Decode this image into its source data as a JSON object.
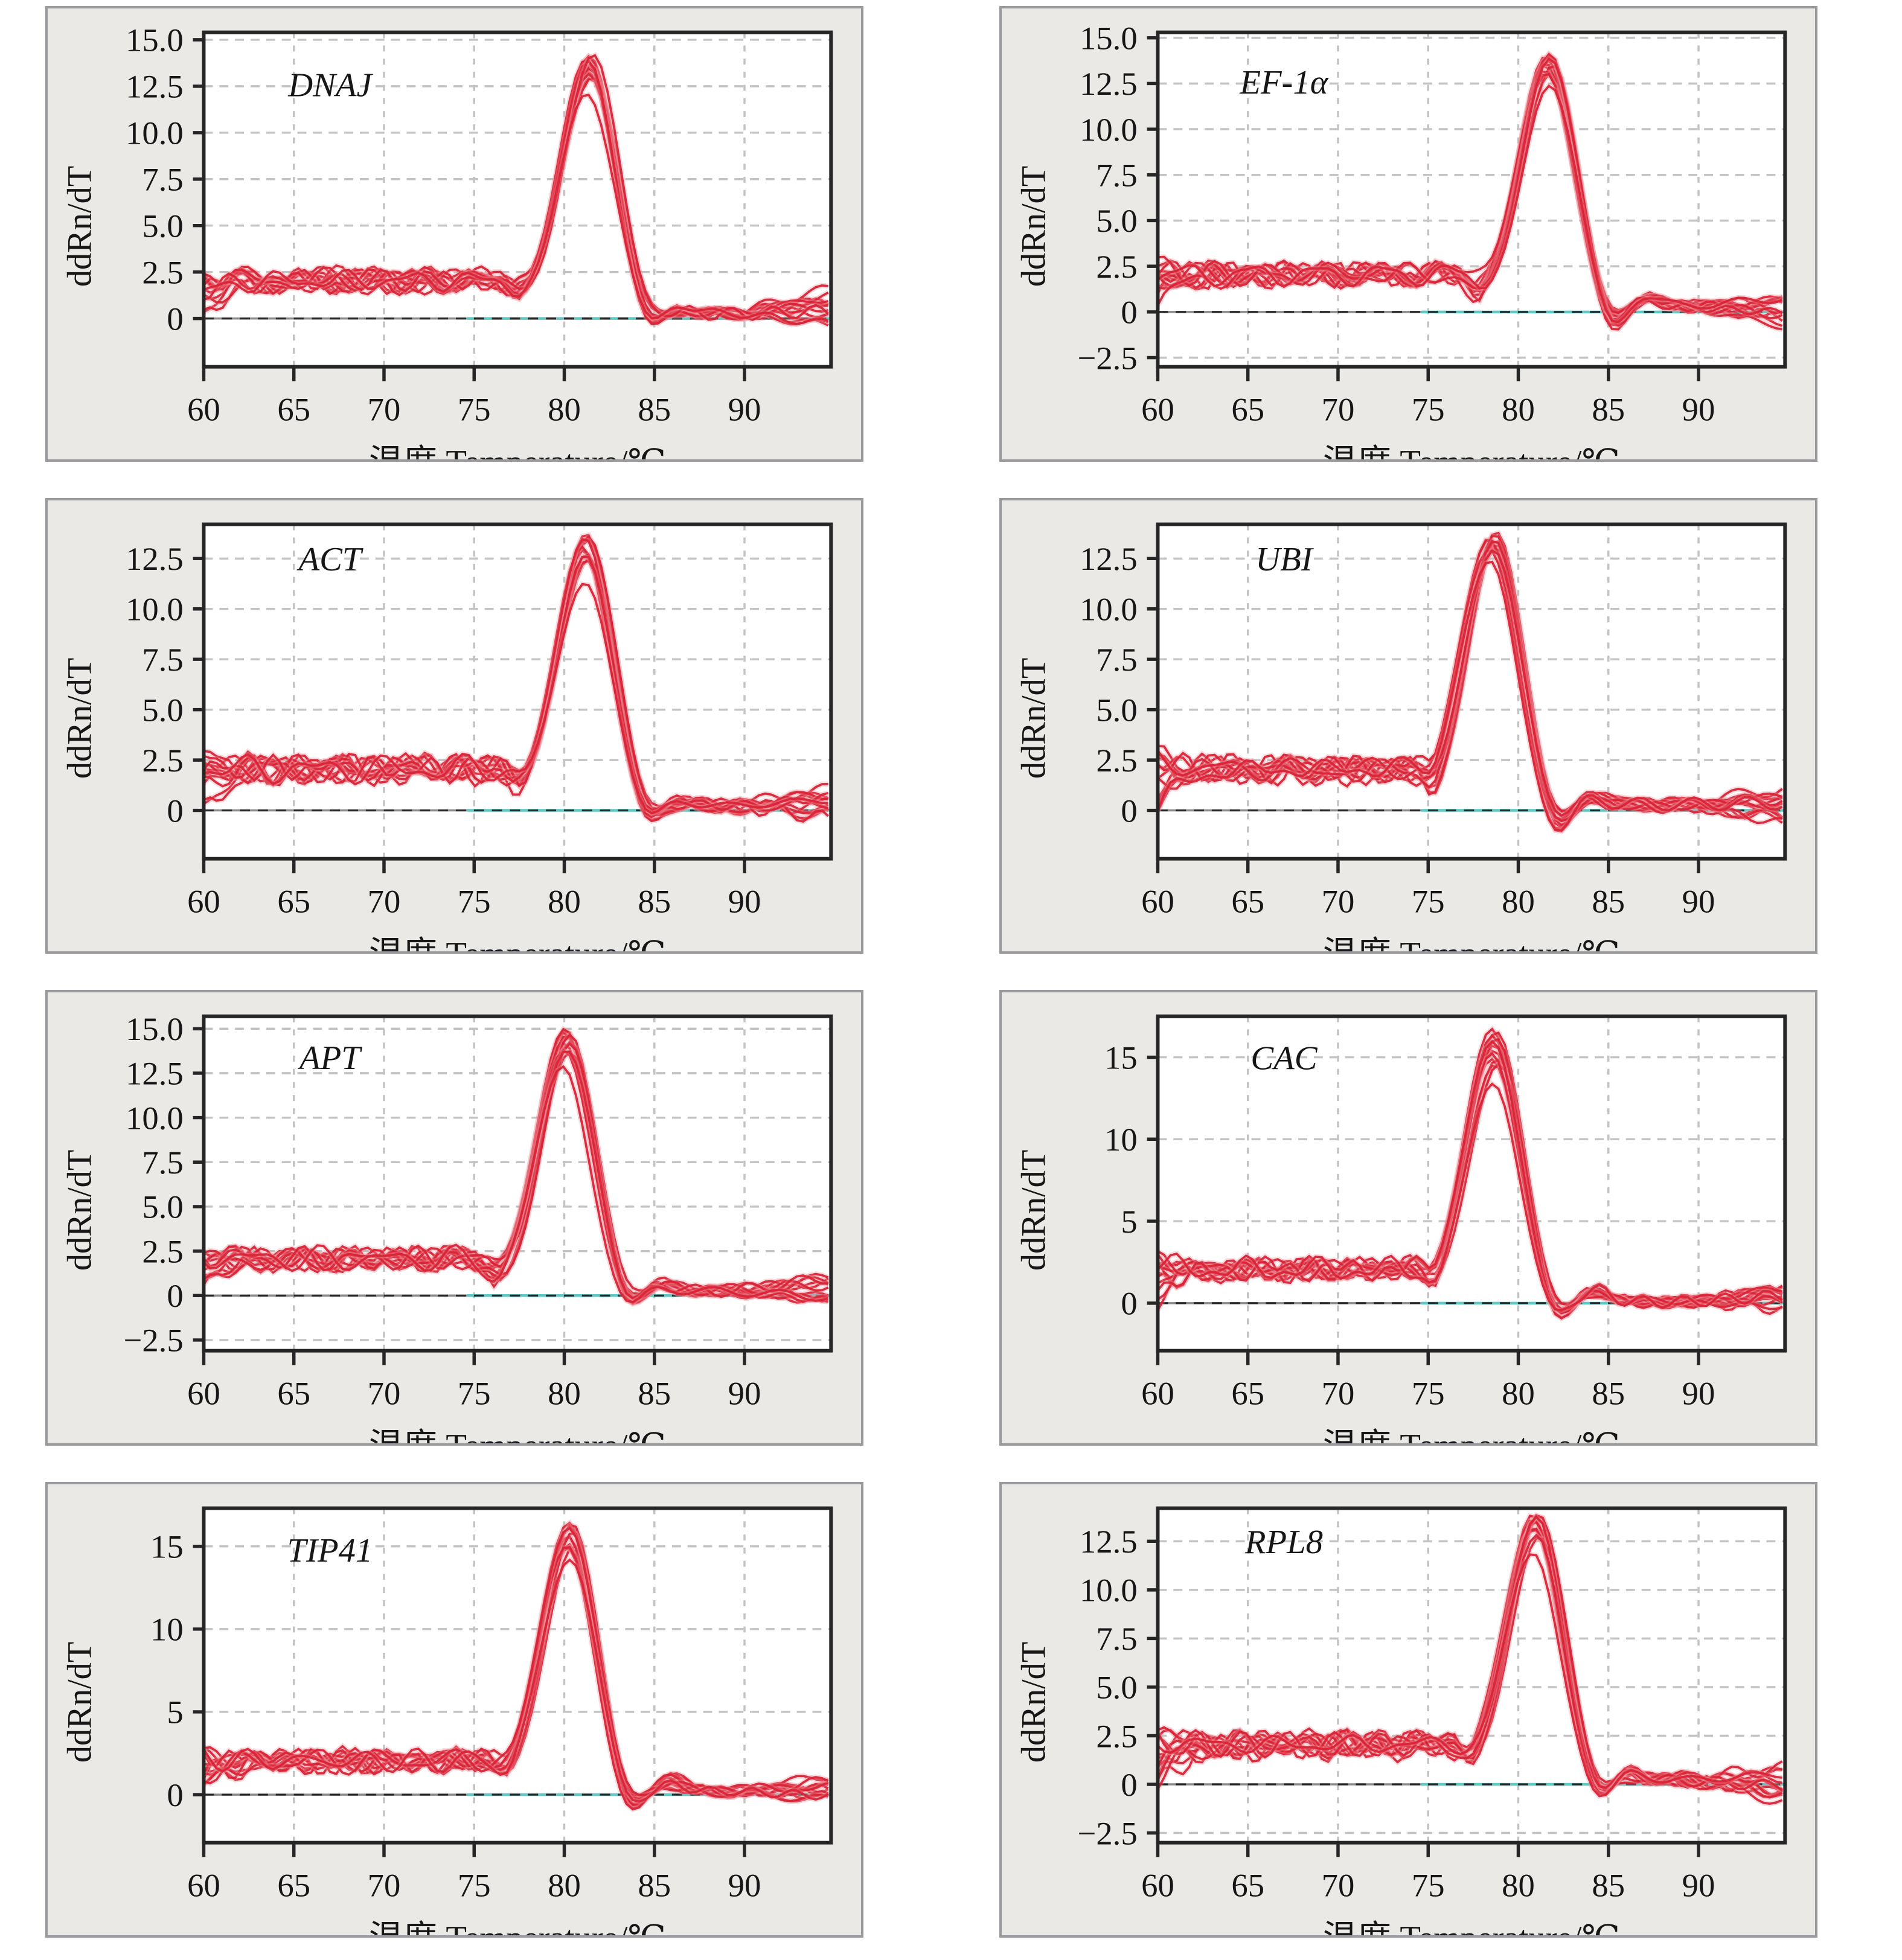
{
  "page": {
    "background": "#ffffff"
  },
  "panel_common": {
    "ylabel": "ddRn/dT",
    "xlabel": "温度 Temperature/℃",
    "xlim": [
      60,
      94.8
    ],
    "xticks": [
      60,
      65,
      70,
      75,
      80,
      85,
      90
    ],
    "xtick_labels": [
      "60",
      "65",
      "70",
      "75",
      "80",
      "85",
      "90"
    ],
    "n_replicates": 13,
    "legend": "none",
    "grid": "dashed",
    "colors": {
      "curve": "#d92336",
      "curve_halo": "#f0949e",
      "grid": "#c3c3c3",
      "frame": "#262626",
      "zero_line_gray": "#8a8a8a",
      "zero_line_teal": "#5ec8c4",
      "card_background": "#eae9e6",
      "card_border": "#9a9a9e",
      "plot_background": "#ffffff",
      "text": "#161616"
    }
  },
  "chart_data": [
    {
      "type": "line",
      "title": "DNAJ",
      "xlabel": "温度 Temperature/℃",
      "ylabel": "ddRn/dT",
      "seed": 11,
      "ylim": [
        -2.6,
        15.4
      ],
      "yticks": [
        0,
        2.5,
        5,
        7.5,
        10,
        12.5,
        15
      ],
      "ytick_labels": [
        "0",
        "2.5",
        "5.0",
        "7.5",
        "10.0",
        "12.5",
        "15.0"
      ],
      "label_x": 67,
      "label_y": 12.6,
      "model": {
        "tm": 81.4,
        "h": [
          12.0,
          14.2
        ],
        "dip_dx": -3.9,
        "dip": [
          0.2,
          1.0
        ],
        "u_dx": 3.2,
        "u": [
          0.5,
          1.3
        ],
        "b_dx": 5.0,
        "b": [
          0.1,
          0.5
        ],
        "tail": 0.25,
        "end": [
          -0.6,
          1.4
        ]
      },
      "representative_curve": {
        "x_start": 60,
        "x_step": 1,
        "y": [
          2.2,
          2.0,
          2.4,
          2.3,
          2.1,
          2.5,
          2.8,
          2.4,
          2.2,
          2.5,
          2.3,
          2.2,
          2.4,
          2.3,
          2.2,
          2.1,
          1.7,
          0.9,
          0.7,
          2.6,
          7.5,
          12.4,
          13.0,
          8.0,
          1.8,
          -0.9,
          -0.1,
          0.3,
          0.2,
          0.3,
          0.2,
          0.3,
          0.4,
          0.3,
          0.4
        ]
      }
    },
    {
      "type": "line",
      "title": "EF-1α",
      "xlabel": "温度 Temperature/℃",
      "ylabel": "ddRn/dT",
      "seed": 22,
      "ylim": [
        -3.0,
        15.3
      ],
      "yticks": [
        -2.5,
        0,
        2.5,
        5,
        7.5,
        10,
        12.5,
        15
      ],
      "ytick_labels": [
        "−2.5",
        "0",
        "2.5",
        "5.0",
        "7.5",
        "10.0",
        "12.5",
        "15.0"
      ],
      "label_x": 67,
      "label_y": 12.6,
      "model": {
        "tm": 81.7,
        "h": [
          12.3,
          14.2
        ],
        "dip_dx": -3.9,
        "dip": [
          0.3,
          1.6
        ],
        "u_dx": 3.5,
        "u": [
          0.7,
          1.6
        ],
        "b_dx": 5.2,
        "b": [
          0.3,
          0.9
        ],
        "tail": 0.35,
        "end": [
          -1.2,
          0.9
        ]
      },
      "representative_curve": {
        "x_start": 60,
        "x_step": 1,
        "y": [
          2.2,
          2.4,
          2.1,
          2.3,
          2.6,
          2.3,
          2.1,
          2.4,
          2.6,
          2.2,
          2.3,
          2.5,
          2.2,
          2.0,
          2.3,
          2.1,
          1.6,
          0.8,
          0.5,
          1.9,
          6.0,
          11.2,
          13.4,
          9.5,
          2.5,
          -1.0,
          -0.6,
          0.8,
          0.4,
          0.3,
          0.4,
          0.3,
          0.5,
          0.4,
          0.3
        ]
      }
    },
    {
      "type": "line",
      "title": "ACT",
      "xlabel": "温度 Temperature/℃",
      "ylabel": "ddRn/dT",
      "seed": 33,
      "ylim": [
        -2.4,
        14.2
      ],
      "yticks": [
        0,
        2.5,
        5,
        7.5,
        10,
        12.5
      ],
      "ytick_labels": [
        "0",
        "2.5",
        "5.0",
        "7.5",
        "10.0",
        "12.5"
      ],
      "label_x": 67,
      "label_y": 12.5,
      "model": {
        "tm": 81.2,
        "h": [
          11.2,
          13.8
        ],
        "dip_dx": -3.8,
        "dip": [
          0.2,
          0.9
        ],
        "u_dx": 3.3,
        "u": [
          0.5,
          1.2
        ],
        "b_dx": 5.0,
        "b": [
          0.1,
          0.4
        ],
        "tail": 0.2,
        "end": [
          -0.7,
          0.8
        ]
      },
      "representative_curve": {
        "x_start": 60,
        "x_step": 1,
        "y": [
          2.3,
          2.1,
          2.4,
          2.2,
          2.0,
          2.3,
          2.5,
          2.2,
          2.1,
          2.3,
          2.2,
          2.4,
          2.1,
          2.3,
          2.2,
          2.3,
          1.6,
          0.7,
          0.9,
          3.0,
          8.0,
          12.6,
          12.8,
          7.0,
          1.2,
          -0.8,
          0.0,
          0.2,
          0.3,
          0.2,
          0.3,
          0.2,
          0.3,
          0.4,
          0.3
        ]
      }
    },
    {
      "type": "line",
      "title": "UBI",
      "xlabel": "温度 Temperature/℃",
      "ylabel": "ddRn/dT",
      "seed": 44,
      "ylim": [
        -2.4,
        14.2
      ],
      "yticks": [
        0,
        2.5,
        5,
        7.5,
        10,
        12.5
      ],
      "ytick_labels": [
        "0",
        "2.5",
        "5.0",
        "7.5",
        "10.0",
        "12.5"
      ],
      "label_x": 67,
      "label_y": 12.5,
      "model": {
        "tm": 78.6,
        "h": [
          12.3,
          13.9
        ],
        "dip_dx": -3.5,
        "dip": [
          0.2,
          1.0
        ],
        "u_dx": 3.4,
        "u": [
          0.8,
          1.6
        ],
        "b_dx": 5.4,
        "b": [
          0.2,
          0.7
        ],
        "tail": 0.3,
        "end": [
          -1.0,
          1.3
        ]
      },
      "representative_curve": {
        "x_start": 60,
        "x_step": 1,
        "y": [
          2.4,
          2.2,
          2.5,
          2.2,
          2.1,
          2.4,
          2.2,
          2.3,
          2.5,
          2.2,
          2.6,
          2.3,
          2.1,
          2.0,
          1.6,
          0.8,
          1.2,
          5.0,
          11.0,
          13.2,
          11.5,
          5.0,
          0.3,
          -1.2,
          0.4,
          0.5,
          0.3,
          0.4,
          0.3,
          0.2,
          0.4,
          0.3,
          0.5,
          0.6,
          0.4
        ]
      }
    },
    {
      "type": "line",
      "title": "APT",
      "xlabel": "温度 Temperature/℃",
      "ylabel": "ddRn/dT",
      "seed": 55,
      "ylim": [
        -3.1,
        15.7
      ],
      "yticks": [
        -2.5,
        0,
        2.5,
        5,
        7.5,
        10,
        12.5,
        15
      ],
      "ytick_labels": [
        "−2.5",
        "0",
        "2.5",
        "5.0",
        "7.5",
        "10.0",
        "12.5",
        "15.0"
      ],
      "label_x": 67,
      "label_y": 13.4,
      "model": {
        "tm": 80.1,
        "h": [
          12.8,
          15.0
        ],
        "dip_dx": -3.9,
        "dip": [
          0.4,
          1.4
        ],
        "u_dx": 3.3,
        "u": [
          0.8,
          1.7
        ],
        "b_dx": 5.1,
        "b": [
          0.2,
          0.6
        ],
        "tail": 0.25,
        "end": [
          -0.6,
          1.0
        ]
      },
      "representative_curve": {
        "x_start": 60,
        "x_step": 1,
        "y": [
          2.3,
          2.5,
          2.2,
          2.4,
          2.1,
          2.3,
          2.2,
          2.4,
          2.3,
          2.1,
          2.4,
          2.2,
          2.3,
          2.2,
          2.1,
          1.7,
          0.5,
          1.0,
          4.5,
          10.0,
          13.6,
          12.8,
          7.0,
          0.8,
          -1.2,
          -0.4,
          0.3,
          0.2,
          0.3,
          0.2,
          0.3,
          0.4,
          0.7,
          0.5,
          0.3
        ]
      }
    },
    {
      "type": "line",
      "title": "CAC",
      "xlabel": "温度 Temperature/℃",
      "ylabel": "ddRn/dT",
      "seed": 66,
      "ylim": [
        -2.9,
        17.5
      ],
      "yticks": [
        0,
        5,
        10,
        15
      ],
      "ytick_labels": [
        "0",
        "5",
        "10",
        "15"
      ],
      "label_x": 67,
      "label_y": 15.0,
      "model": {
        "tm": 78.7,
        "h": [
          13.3,
          16.8
        ],
        "dip_dx": -3.4,
        "dip": [
          0.3,
          1.2
        ],
        "u_dx": 3.3,
        "u": [
          0.9,
          1.8
        ],
        "b_dx": 5.5,
        "b": [
          0.4,
          1.1
        ],
        "tail": 0.1,
        "end": [
          -0.5,
          0.9
        ]
      },
      "representative_curve": {
        "x_start": 60,
        "x_step": 1,
        "y": [
          2.4,
          2.1,
          2.6,
          2.3,
          2.0,
          2.4,
          2.6,
          2.2,
          2.4,
          2.1,
          2.5,
          2.3,
          2.4,
          2.2,
          1.8,
          0.7,
          1.5,
          6.0,
          13.0,
          15.2,
          12.5,
          5.5,
          -0.5,
          -1.5,
          0.8,
          0.4,
          0.1,
          -0.1,
          0.0,
          -0.2,
          -0.1,
          0.0,
          -0.2,
          0.1,
          -0.1
        ]
      }
    },
    {
      "type": "line",
      "title": "TIP41",
      "xlabel": "温度 Temperature/℃",
      "ylabel": "ddRn/dT",
      "seed": 77,
      "ylim": [
        -2.9,
        17.3
      ],
      "yticks": [
        0,
        5,
        10,
        15
      ],
      "ytick_labels": [
        "0",
        "5",
        "10",
        "15"
      ],
      "label_x": 67,
      "label_y": 14.8,
      "model": {
        "tm": 80.3,
        "h": [
          14.1,
          16.5
        ],
        "dip_dx": -3.6,
        "dip": [
          0.4,
          1.3
        ],
        "u_dx": 3.2,
        "u": [
          0.9,
          1.8
        ],
        "b_dx": 5.6,
        "b": [
          0.3,
          0.9
        ],
        "tail": 0.2,
        "end": [
          -0.5,
          0.9
        ]
      },
      "representative_curve": {
        "x_start": 60,
        "x_step": 1,
        "y": [
          2.5,
          2.3,
          2.6,
          2.4,
          2.2,
          2.5,
          2.3,
          2.6,
          2.4,
          2.7,
          2.4,
          2.2,
          2.6,
          2.8,
          2.5,
          2.2,
          1.0,
          0.6,
          3.0,
          9.5,
          15.0,
          14.5,
          8.0,
          0.8,
          -1.4,
          0.2,
          0.6,
          0.3,
          0.4,
          0.5,
          0.2,
          0.3,
          0.2,
          0.3,
          0.2
        ]
      }
    },
    {
      "type": "line",
      "title": "RPL8",
      "xlabel": "温度 Temperature/℃",
      "ylabel": "ddRn/dT",
      "seed": 88,
      "ylim": [
        -3.0,
        14.2
      ],
      "yticks": [
        -2.5,
        0,
        2.5,
        5,
        7.5,
        10,
        12.5
      ],
      "ytick_labels": [
        "−2.5",
        "0",
        "2.5",
        "5.0",
        "7.5",
        "10.0",
        "12.5"
      ],
      "label_x": 67,
      "label_y": 12.5,
      "model": {
        "tm": 81.0,
        "h": [
          11.8,
          13.9
        ],
        "dip_dx": -3.8,
        "dip": [
          0.3,
          1.1
        ],
        "u_dx": 3.4,
        "u": [
          0.7,
          1.5
        ],
        "b_dx": 5.1,
        "b": [
          0.2,
          0.6
        ],
        "tail": 0.25,
        "end": [
          -1.1,
          0.9
        ]
      },
      "representative_curve": {
        "x_start": 60,
        "x_step": 1,
        "y": [
          2.3,
          2.6,
          2.2,
          2.4,
          2.1,
          2.3,
          2.5,
          2.8,
          2.4,
          2.2,
          2.4,
          2.1,
          2.3,
          2.5,
          2.2,
          2.0,
          1.4,
          0.6,
          1.0,
          3.5,
          8.5,
          12.7,
          12.4,
          6.0,
          0.6,
          -1.1,
          0.1,
          0.3,
          0.2,
          0.4,
          0.2,
          0.3,
          0.1,
          -0.2,
          0.3
        ]
      }
    }
  ]
}
